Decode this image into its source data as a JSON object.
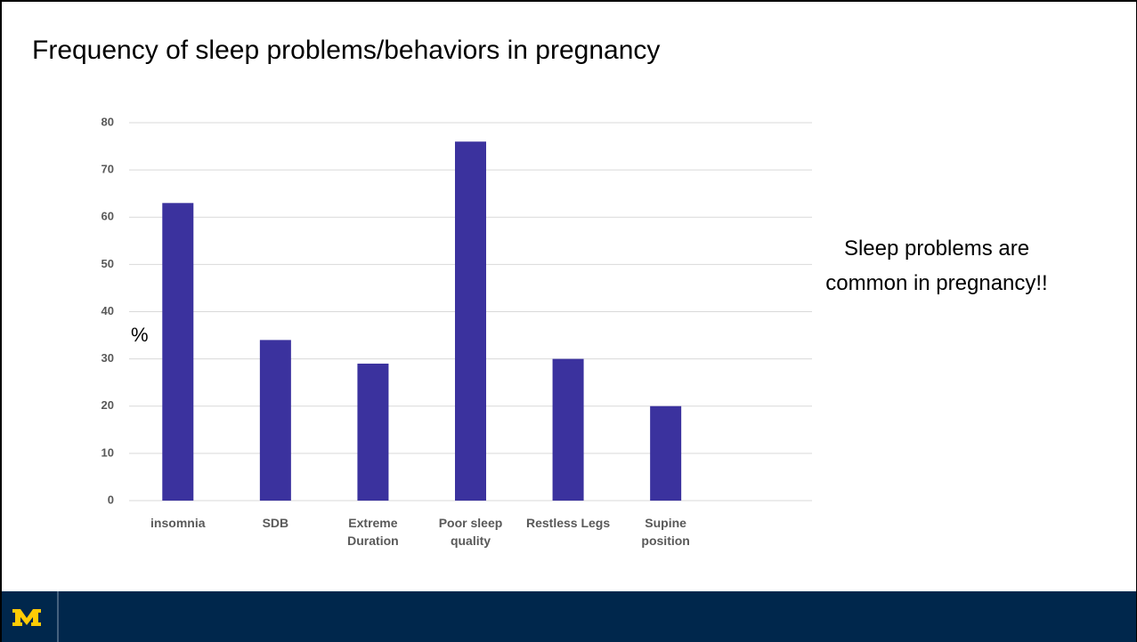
{
  "chart_data": {
    "type": "bar",
    "title": "Frequency of sleep problems/behaviors in pregnancy",
    "y_label": "%",
    "annotation": "Sleep problems are common in pregnancy!!",
    "categories": [
      "insomnia",
      "SDB",
      "Extreme Duration",
      "Poor sleep quality",
      "Restless Legs",
      "Supine position",
      null
    ],
    "values": [
      63,
      34,
      29,
      76,
      30,
      20,
      null
    ],
    "color": "#3b329e",
    "ylim": [
      0,
      80
    ],
    "yticks": [
      0,
      10,
      20,
      30,
      40,
      50,
      60,
      70,
      80
    ],
    "grid": true
  }
}
